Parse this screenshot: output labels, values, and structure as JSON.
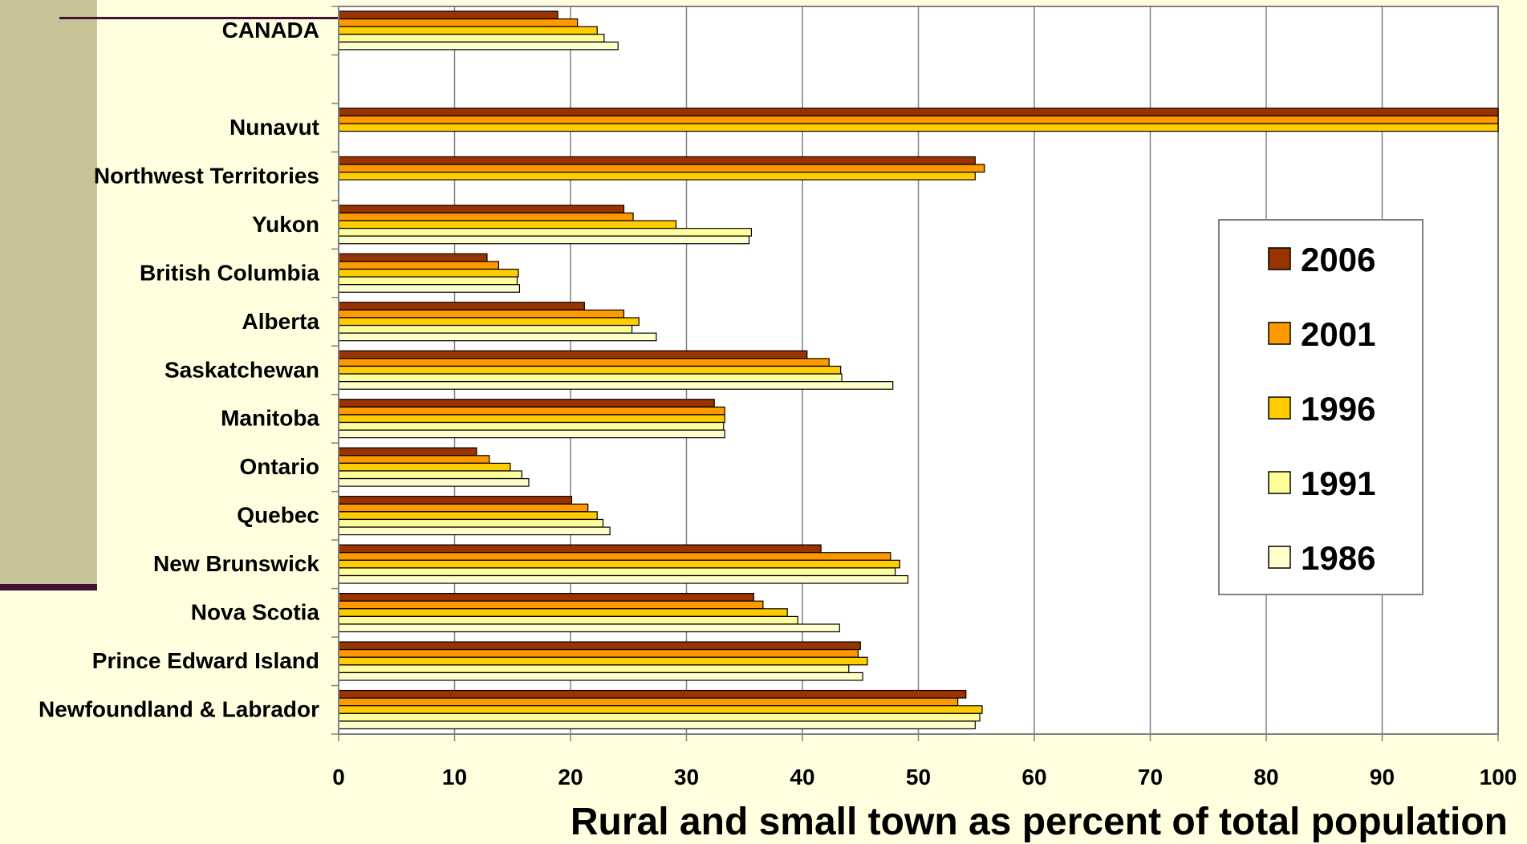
{
  "chart_data": {
    "type": "bar",
    "orientation": "horizontal",
    "xlabel": "Rural and small town as percent of total population",
    "xlim": [
      0,
      100
    ],
    "xticks": [
      0,
      10,
      20,
      30,
      40,
      50,
      60,
      70,
      80,
      90,
      100
    ],
    "grid": "vertical",
    "legend_position": "right",
    "categories": [
      "CANADA",
      "",
      "Nunavut",
      "Northwest Territories",
      "Yukon",
      "British Columbia",
      "Alberta",
      "Saskatchewan",
      "Manitoba",
      "Ontario",
      "Quebec",
      "New Brunswick",
      "Nova Scotia",
      "Prince Edward Island",
      "Newfoundland & Labrador"
    ],
    "series": [
      {
        "name": "2006",
        "color": "#993300",
        "values": [
          18.9,
          null,
          100,
          54.9,
          24.6,
          12.8,
          21.2,
          40.4,
          32.4,
          11.9,
          20.1,
          41.6,
          35.8,
          45.0,
          54.1
        ]
      },
      {
        "name": "2001",
        "color": "#ff9900",
        "values": [
          20.6,
          null,
          100,
          55.7,
          25.4,
          13.8,
          24.6,
          42.3,
          33.3,
          13.0,
          21.5,
          47.6,
          36.6,
          44.8,
          53.4
        ]
      },
      {
        "name": "1996",
        "color": "#ffcc00",
        "values": [
          22.3,
          null,
          100,
          54.9,
          29.1,
          15.5,
          25.9,
          43.3,
          33.3,
          14.8,
          22.3,
          48.4,
          38.7,
          45.6,
          55.5
        ]
      },
      {
        "name": "1991",
        "color": "#ffff99",
        "values": [
          22.9,
          null,
          null,
          null,
          35.6,
          15.4,
          25.3,
          43.4,
          33.2,
          15.8,
          22.8,
          48.0,
          39.6,
          44.0,
          55.3
        ]
      },
      {
        "name": "1986",
        "color": "#ffffcc",
        "values": [
          24.1,
          null,
          null,
          null,
          35.4,
          15.6,
          27.4,
          47.8,
          33.3,
          16.4,
          23.4,
          49.1,
          43.2,
          45.2,
          54.9
        ]
      }
    ]
  }
}
